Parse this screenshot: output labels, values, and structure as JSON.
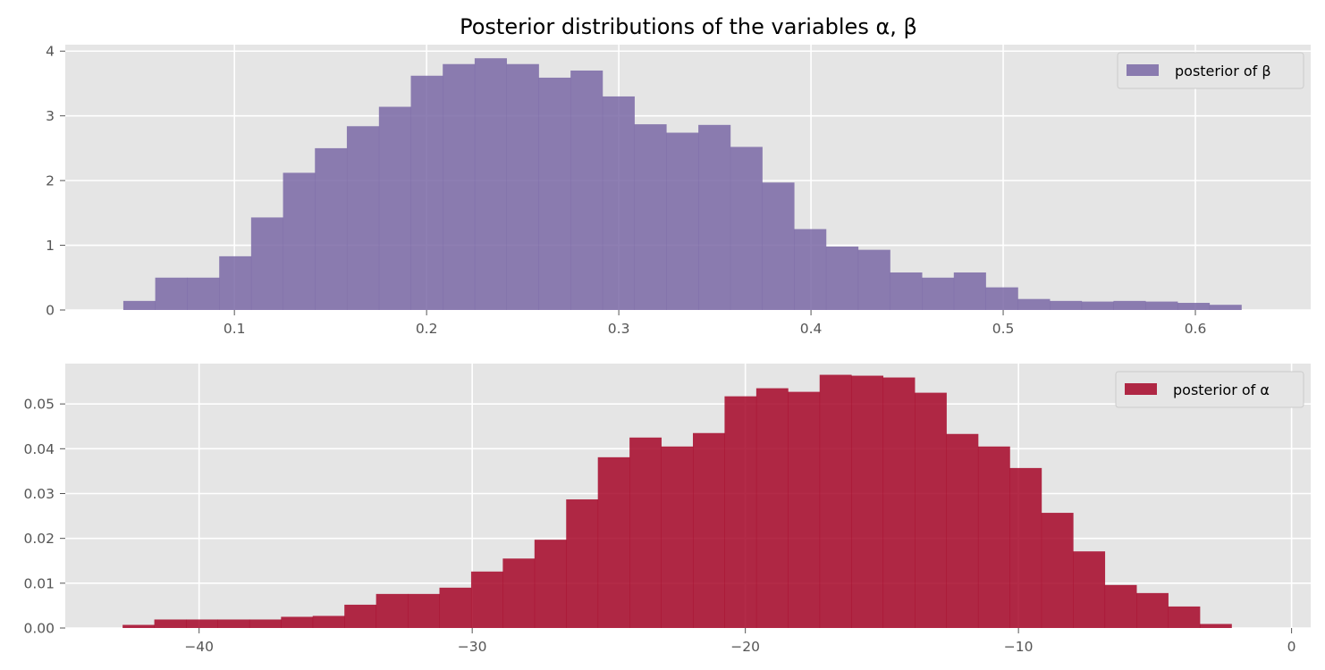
{
  "chart_data": [
    {
      "type": "bar",
      "title": "Posterior distributions of the variables α, β",
      "xlabel": "",
      "ylabel": "",
      "grid": true,
      "legend_placement": "top-right",
      "xlim": [
        0.012,
        0.66
      ],
      "ylim": [
        0,
        4.1
      ],
      "xticks": [
        0.1,
        0.2,
        0.3,
        0.4,
        0.5,
        0.6
      ],
      "xtick_labels": [
        "0.1",
        "0.2",
        "0.3",
        "0.4",
        "0.5",
        "0.6"
      ],
      "yticks": [
        0,
        1,
        2,
        3,
        4
      ],
      "ytick_labels": [
        "0",
        "1",
        "2",
        "3",
        "4"
      ],
      "bin_edges": [
        0.0422,
        0.0588,
        0.0754,
        0.0921,
        0.1087,
        0.1253,
        0.1419,
        0.1585,
        0.1752,
        0.1918,
        0.2084,
        0.225,
        0.2416,
        0.2583,
        0.2749,
        0.2915,
        0.3081,
        0.3247,
        0.3414,
        0.358,
        0.3746,
        0.3912,
        0.4078,
        0.4245,
        0.4411,
        0.4577,
        0.4743,
        0.4909,
        0.5076,
        0.5242,
        0.5408,
        0.5574,
        0.574,
        0.5907,
        0.6073,
        0.6239,
        0.6352
      ],
      "series": [
        {
          "name": "posterior of β",
          "color": "#7a68a6",
          "values": [
            0.14,
            0.5,
            0.5,
            0.83,
            1.43,
            2.12,
            2.5,
            2.84,
            3.14,
            3.62,
            3.8,
            3.89,
            3.8,
            3.59,
            3.7,
            3.3,
            2.87,
            2.74,
            2.86,
            2.52,
            1.97,
            1.25,
            0.98,
            0.93,
            0.58,
            0.5,
            0.58,
            0.35,
            0.17,
            0.14,
            0.13,
            0.14,
            0.13,
            0.11,
            0.08,
            0.0
          ]
        }
      ]
    },
    {
      "type": "bar",
      "title": "",
      "xlabel": "",
      "ylabel": "",
      "grid": true,
      "legend_placement": "top-right",
      "xlim": [
        -44.9,
        0.7
      ],
      "ylim": [
        0,
        0.059
      ],
      "xticks": [
        -40,
        -30,
        -20,
        -10,
        0
      ],
      "xtick_labels": [
        "−40",
        "−30",
        "−20",
        "−10",
        "0"
      ],
      "yticks": [
        0,
        0.01,
        0.02,
        0.03,
        0.04,
        0.05
      ],
      "ytick_labels": [
        "0.00",
        "0.01",
        "0.02",
        "0.03",
        "0.04",
        "0.05"
      ],
      "bin_edges": [
        -42.8,
        -41.64,
        -40.48,
        -39.32,
        -38.16,
        -37.0,
        -35.84,
        -34.68,
        -33.52,
        -32.36,
        -31.2,
        -30.04,
        -28.88,
        -27.72,
        -26.56,
        -25.4,
        -24.24,
        -23.08,
        -21.92,
        -20.76,
        -19.6,
        -18.44,
        -17.28,
        -16.12,
        -14.96,
        -13.8,
        -12.64,
        -11.48,
        -10.32,
        -9.16,
        -8.0,
        -6.84,
        -5.68,
        -4.52,
        -3.36,
        -2.2,
        -1.6
      ],
      "series": [
        {
          "name": "posterior of α",
          "color": "#a60628",
          "values": [
            0.0007,
            0.0019,
            0.0019,
            0.0019,
            0.0019,
            0.0025,
            0.0027,
            0.0052,
            0.0076,
            0.0076,
            0.009,
            0.0126,
            0.0155,
            0.0197,
            0.0287,
            0.0381,
            0.0425,
            0.0405,
            0.0435,
            0.0517,
            0.0535,
            0.0527,
            0.0565,
            0.0563,
            0.0559,
            0.0525,
            0.0433,
            0.0405,
            0.0357,
            0.0257,
            0.0171,
            0.0096,
            0.0078,
            0.0048,
            0.0009,
            0.0
          ]
        }
      ]
    }
  ]
}
